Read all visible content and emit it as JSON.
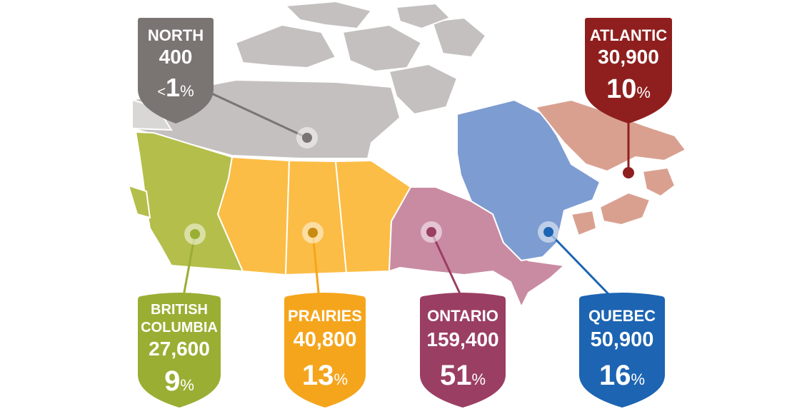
{
  "regions": [
    {
      "id": "north",
      "name": "NORTH",
      "count": "400",
      "percent_prefix": "<",
      "percent": "1",
      "percent_sign": "%",
      "color": "#7a7472",
      "map_color": "#c4c0bf"
    },
    {
      "id": "atlantic",
      "name": "ATLANTIC",
      "count": "30,900",
      "percent_prefix": "",
      "percent": "10",
      "percent_sign": "%",
      "color": "#8e1f1e",
      "map_color": "#d9a090"
    },
    {
      "id": "bc",
      "name_line1": "BRITISH",
      "name_line2": "COLUMBIA",
      "count": "27,600",
      "percent_prefix": "",
      "percent": "9",
      "percent_sign": "%",
      "color": "#9aae33",
      "map_color": "#b4be4a"
    },
    {
      "id": "prairies",
      "name": "PRAIRIES",
      "count": "40,800",
      "percent_prefix": "",
      "percent": "13",
      "percent_sign": "%",
      "color": "#f5a51c",
      "map_color": "#fbbd45"
    },
    {
      "id": "ontario",
      "name": "ONTARIO",
      "count": "159,400",
      "percent_prefix": "",
      "percent": "51",
      "percent_sign": "%",
      "color": "#9b3e63",
      "map_color": "#c98ba2"
    },
    {
      "id": "quebec",
      "name": "QUEBEC",
      "count": "50,900",
      "percent_prefix": "",
      "percent": "16",
      "percent_sign": "%",
      "color": "#1d64b2",
      "map_color": "#7d9cd1"
    }
  ]
}
